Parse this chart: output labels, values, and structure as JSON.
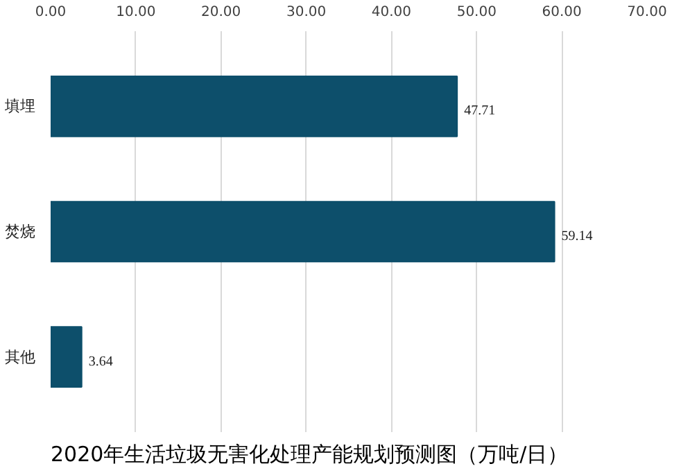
{
  "chart_data": {
    "type": "bar",
    "orientation": "horizontal",
    "title": "2020年生活垃圾无害化处理产能规划预测图（万吨/日）",
    "categories": [
      "填埋",
      "焚烧",
      "其他"
    ],
    "values": [
      47.71,
      59.14,
      3.64
    ],
    "color": "#0d4f6b",
    "xlim": [
      0,
      70
    ],
    "xticks": [
      {
        "value": 0,
        "label": "0.00"
      },
      {
        "value": 10,
        "label": "10.00"
      },
      {
        "value": 20,
        "label": "20.00"
      },
      {
        "value": 30,
        "label": "30.00"
      },
      {
        "value": 40,
        "label": "40.00"
      },
      {
        "value": 50,
        "label": "50.00"
      },
      {
        "value": 60,
        "label": "60.00"
      },
      {
        "value": 70,
        "label": "70.00"
      }
    ],
    "data_labels": true,
    "grid": "x"
  }
}
